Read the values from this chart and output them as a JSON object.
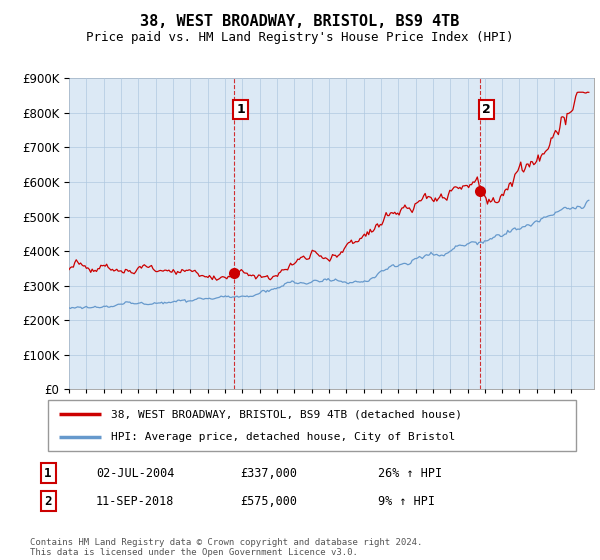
{
  "title": "38, WEST BROADWAY, BRISTOL, BS9 4TB",
  "subtitle": "Price paid vs. HM Land Registry's House Price Index (HPI)",
  "legend_label_red": "38, WEST BROADWAY, BRISTOL, BS9 4TB (detached house)",
  "legend_label_blue": "HPI: Average price, detached house, City of Bristol",
  "annotation1_label": "1",
  "annotation1_date": "02-JUL-2004",
  "annotation1_price": "£337,000",
  "annotation1_hpi": "26% ↑ HPI",
  "annotation1_year": 2004.5,
  "annotation1_value": 337000,
  "annotation2_label": "2",
  "annotation2_date": "11-SEP-2018",
  "annotation2_price": "£575,000",
  "annotation2_hpi": "9% ↑ HPI",
  "annotation2_year": 2018.7,
  "annotation2_value": 575000,
  "footer": "Contains HM Land Registry data © Crown copyright and database right 2024.\nThis data is licensed under the Open Government Licence v3.0.",
  "ylim": [
    0,
    900000
  ],
  "xlim_start": 1995,
  "xlim_end": 2025,
  "background_color": "#ffffff",
  "chart_bg_color": "#dce9f5",
  "grid_color": "#b0c8e0",
  "red_color": "#cc0000",
  "blue_color": "#6699cc",
  "title_fontsize": 11,
  "subtitle_fontsize": 9
}
